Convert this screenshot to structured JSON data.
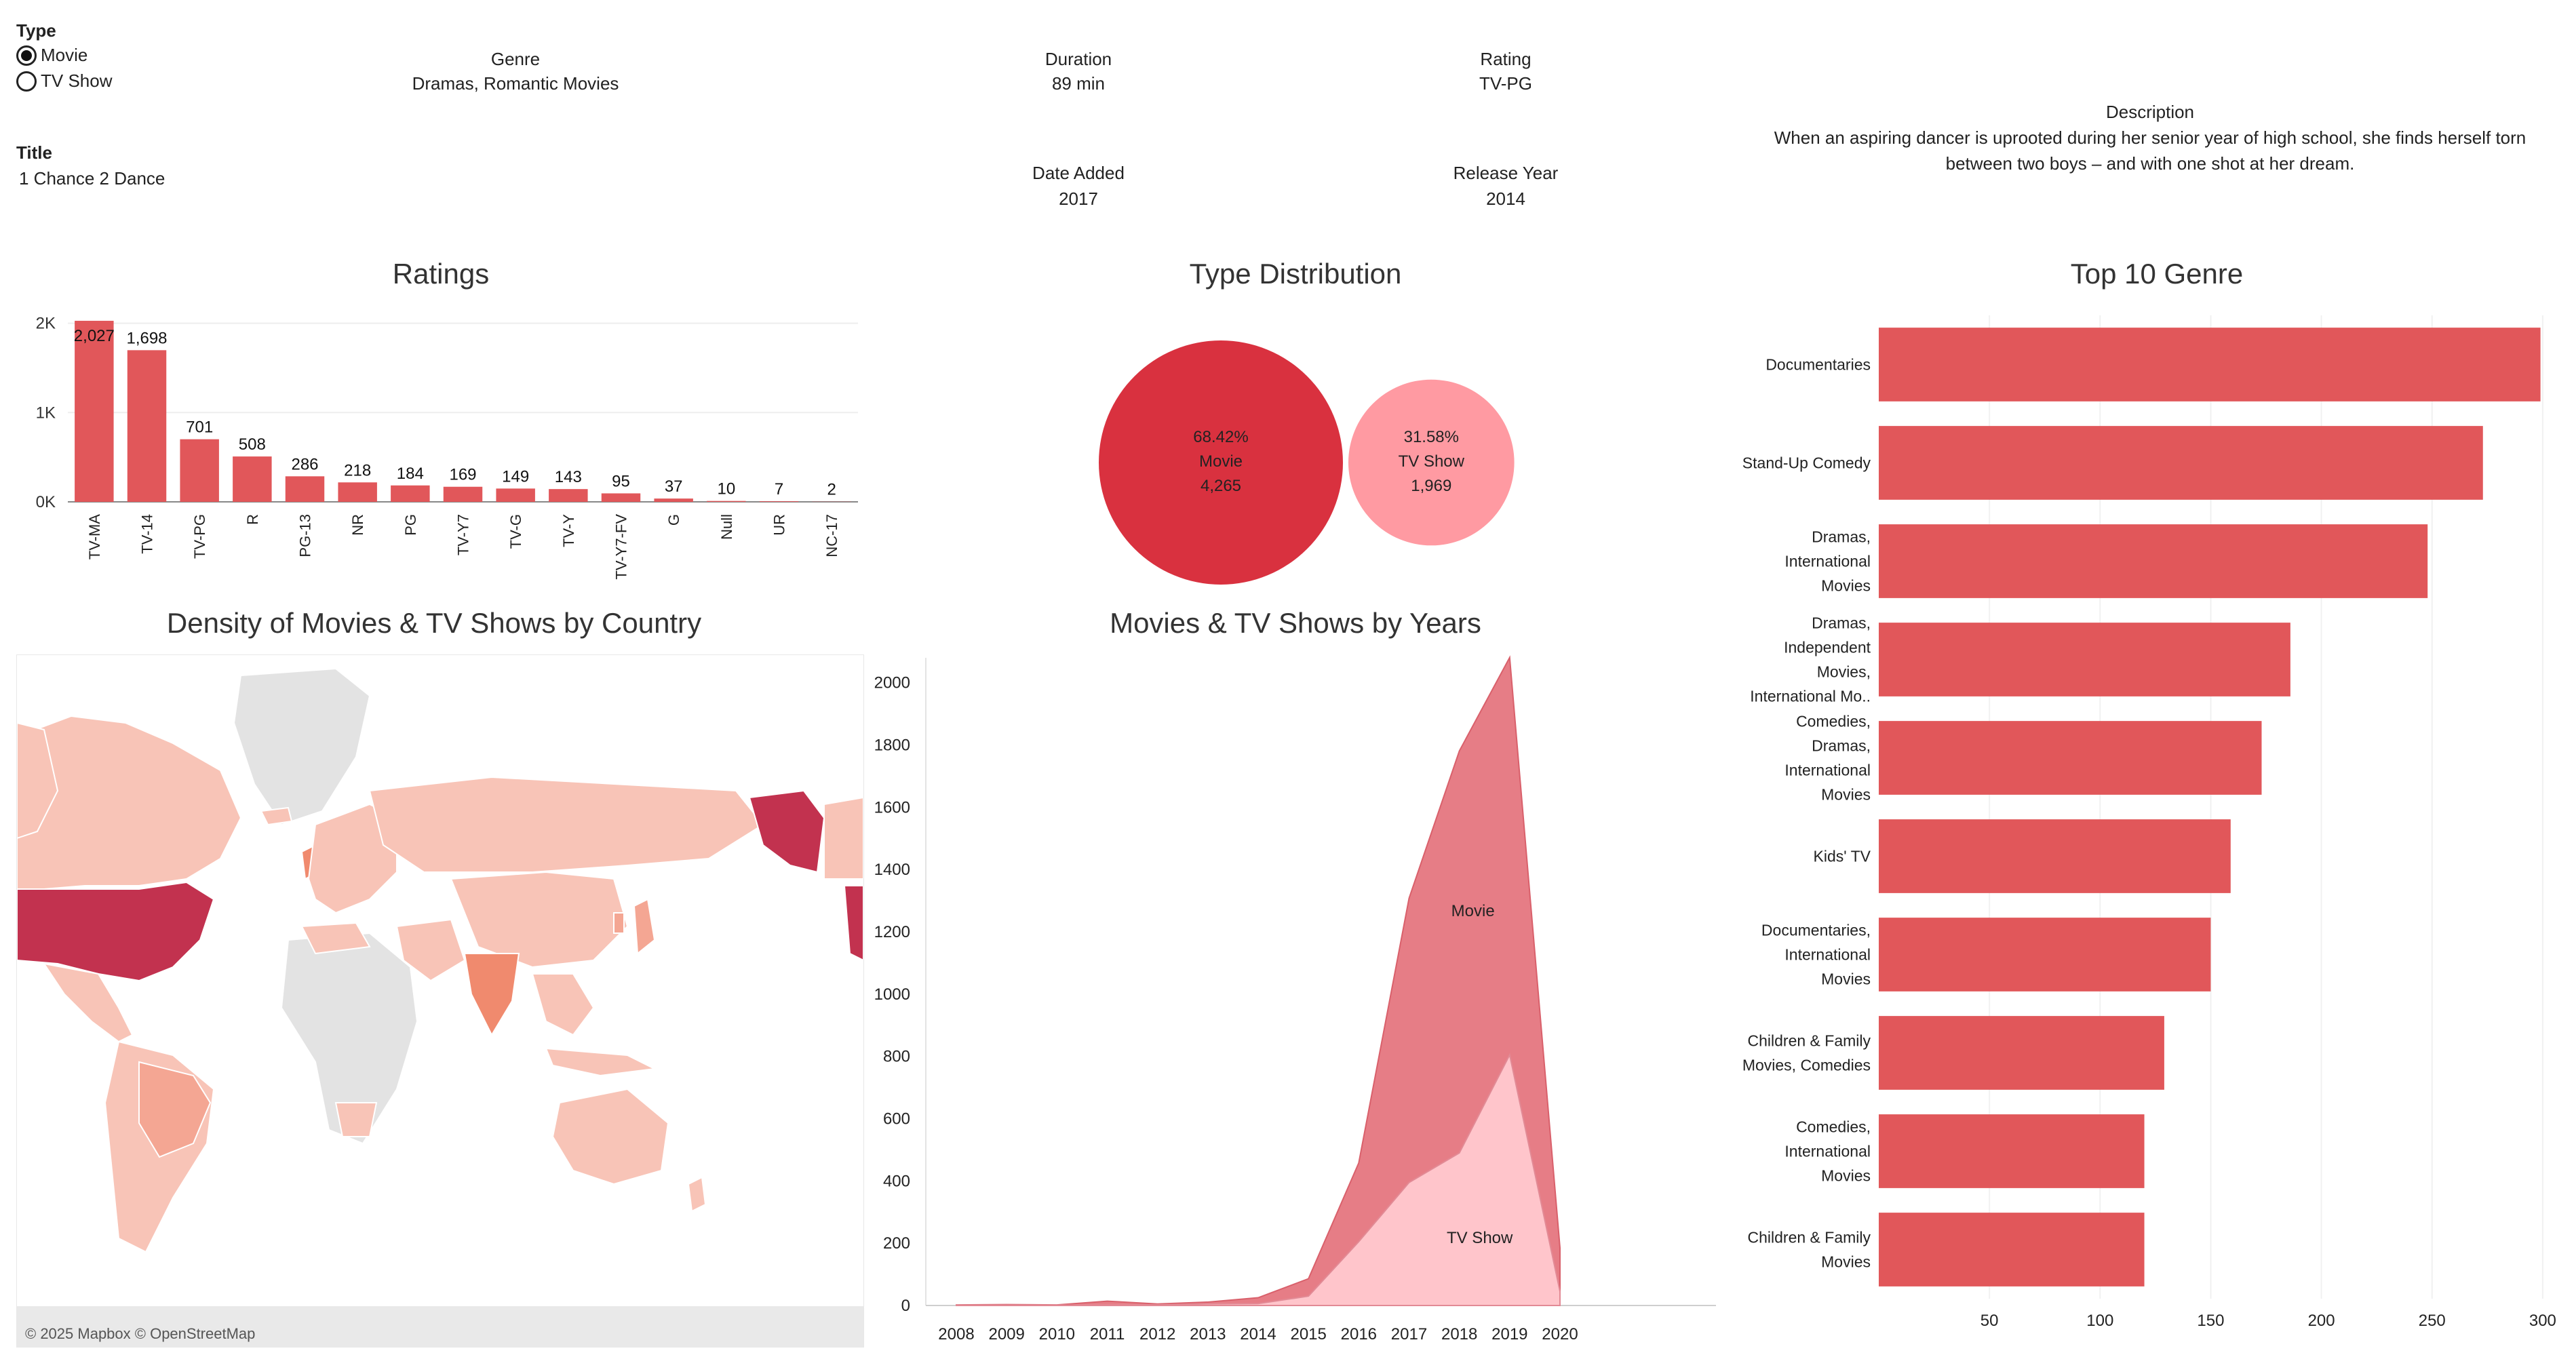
{
  "filters": {
    "type_label": "Type",
    "type_options": [
      {
        "label": "Movie",
        "selected": true
      },
      {
        "label": "TV Show",
        "selected": false
      }
    ],
    "title_label": "Title",
    "title_value": "1 Chance 2 Dance"
  },
  "details": {
    "genre_label": "Genre",
    "genre_value": "Dramas, Romantic Movies",
    "duration_label": "Duration",
    "duration_value": "89 min",
    "rating_label": "Rating",
    "rating_value": "TV-PG",
    "date_added_label": "Date Added",
    "date_added_value": "2017",
    "release_year_label": "Release Year",
    "release_year_value": "2014",
    "description_label": "Description",
    "description_line1": "When an aspiring dancer is uprooted during her senior year of high school, she finds herself torn",
    "description_line2": "between two boys – and with one shot at her dream."
  },
  "titles": {
    "ratings": "Ratings",
    "type_distribution": "Type Distribution",
    "top_genre": "Top 10 Genre",
    "density": "Density of Movies & TV Shows by Country",
    "by_years": "Movies & TV Shows by Years"
  },
  "map": {
    "attribution": "© 2025 Mapbox © OpenStreetMap"
  },
  "colors": {
    "bar": "#e1575a",
    "movie_bubble": "#d9313f",
    "tvshow_bubble": "#ff9aa2",
    "movie_area": "#e67d86",
    "tvshow_area": "#ffc5cb",
    "map_high": "#c2324f",
    "map_mid": "#f08a6e",
    "map_low": "#f8c4b7",
    "map_none": "#e3e3e3"
  },
  "chart_data": [
    {
      "type": "bar",
      "title": "Ratings",
      "categories": [
        "TV-MA",
        "TV-14",
        "TV-PG",
        "R",
        "PG-13",
        "NR",
        "PG",
        "TV-Y7",
        "TV-G",
        "TV-Y",
        "TV-Y7-FV",
        "G",
        "Null",
        "UR",
        "NC-17"
      ],
      "values": [
        2027,
        1698,
        701,
        508,
        286,
        218,
        184,
        169,
        149,
        143,
        95,
        37,
        10,
        7,
        2
      ],
      "value_labels": [
        "2,027",
        "1,698",
        "701",
        "508",
        "286",
        "218",
        "184",
        "169",
        "149",
        "143",
        "95",
        "37",
        "10",
        "7",
        "2"
      ],
      "y_ticks": [
        {
          "v": 0,
          "label": "0K"
        },
        {
          "v": 1000,
          "label": "1K"
        },
        {
          "v": 2000,
          "label": "2K"
        }
      ],
      "ylim": [
        0,
        2050
      ]
    },
    {
      "type": "bubble",
      "title": "Type Distribution",
      "items": [
        {
          "pct": "68.42%",
          "name": "Movie",
          "count_label": "4,265",
          "value": 4265
        },
        {
          "pct": "31.58%",
          "name": "TV Show",
          "count_label": "1,969",
          "value": 1969
        }
      ]
    },
    {
      "type": "bar",
      "orientation": "horizontal",
      "title": "Top 10 Genre",
      "categories": [
        [
          "Documentaries"
        ],
        [
          "Stand-Up Comedy"
        ],
        [
          "Dramas,",
          "International",
          "Movies"
        ],
        [
          "Dramas,",
          "Independent",
          "Movies,",
          "International Mo.."
        ],
        [
          "Comedies,",
          "Dramas,",
          "International",
          "Movies"
        ],
        [
          "Kids' TV"
        ],
        [
          "Documentaries,",
          "International",
          "Movies"
        ],
        [
          "Children & Family",
          "Movies, Comedies"
        ],
        [
          "Comedies,",
          "International",
          "Movies"
        ],
        [
          "Children & Family",
          "Movies"
        ]
      ],
      "values": [
        299,
        273,
        248,
        186,
        173,
        159,
        150,
        129,
        120,
        120
      ],
      "x_ticks": [
        50,
        100,
        150,
        200,
        250,
        300
      ],
      "xlim": [
        0,
        308
      ]
    },
    {
      "type": "area",
      "title": "Movies & TV Shows by Years",
      "x": [
        2008,
        2009,
        2010,
        2011,
        2012,
        2013,
        2014,
        2015,
        2016,
        2017,
        2018,
        2019,
        2020
      ],
      "series": [
        {
          "name": "Movie",
          "values": [
            1,
            2,
            1,
            13,
            3,
            6,
            19,
            56,
            253,
            913,
            1291,
            1276,
            140
          ]
        },
        {
          "name": "TV Show",
          "values": [
            1,
            1,
            1,
            1,
            2,
            5,
            6,
            30,
            205,
            395,
            490,
            805,
            45
          ]
        }
      ],
      "stacked": true,
      "y_ticks": [
        0,
        200,
        400,
        600,
        800,
        1000,
        1200,
        1400,
        1600,
        1800,
        2000
      ],
      "ylim": [
        0,
        2080
      ]
    }
  ]
}
